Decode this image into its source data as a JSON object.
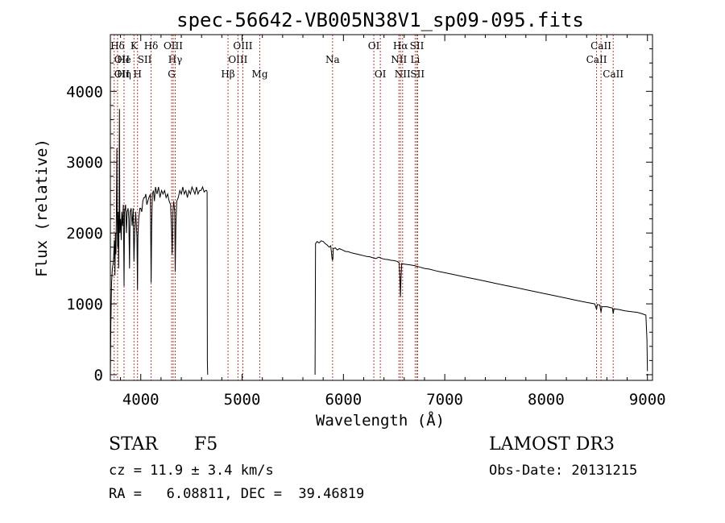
{
  "chart_data": {
    "type": "line",
    "title": "spec-56642-VB005N38V1_sp09-095.fits",
    "xlabel": "Wavelength (Å)",
    "ylabel": "Flux (relative)",
    "xlim": [
      3700,
      9050
    ],
    "ylim": [
      -80,
      4800
    ],
    "x_ticks": [
      4000,
      5000,
      6000,
      7000,
      8000,
      9000
    ],
    "y_ticks": [
      0,
      1000,
      2000,
      3000,
      4000
    ],
    "series": [
      {
        "name": "spectrum",
        "segments": [
          [
            [
              3700,
              0
            ],
            [
              3705,
              700
            ],
            [
              3712,
              1300
            ],
            [
              3720,
              1500
            ],
            [
              3730,
              1600
            ],
            [
              3740,
              1900
            ],
            [
              3745,
              1400
            ],
            [
              3750,
              2000
            ],
            [
              3755,
              1700
            ],
            [
              3760,
              2300
            ],
            [
              3764,
              3200
            ],
            [
              3768,
              2100
            ],
            [
              3772,
              1800
            ],
            [
              3777,
              2300
            ],
            [
              3782,
              1500
            ],
            [
              3786,
              2200
            ],
            [
              3790,
              3750
            ],
            [
              3794,
              2000
            ],
            [
              3800,
              2200
            ],
            [
              3807,
              1900
            ],
            [
              3812,
              2300
            ],
            [
              3820,
              2100
            ],
            [
              3828,
              2400
            ],
            [
              3835,
              1250
            ],
            [
              3840,
              2300
            ],
            [
              3850,
              2400
            ],
            [
              3858,
              2000
            ],
            [
              3865,
              2300
            ],
            [
              3875,
              2350
            ],
            [
              3882,
              2200
            ],
            [
              3889,
              1500
            ],
            [
              3895,
              2300
            ],
            [
              3905,
              2350
            ],
            [
              3915,
              2100
            ],
            [
              3925,
              2350
            ],
            [
              3933,
              1600
            ],
            [
              3940,
              2000
            ],
            [
              3950,
              2300
            ],
            [
              3962,
              1950
            ],
            [
              3968,
              1200
            ],
            [
              3972,
              1950
            ],
            [
              3980,
              2200
            ],
            [
              3992,
              2350
            ],
            [
              4000,
              2350
            ],
            [
              4010,
              2300
            ],
            [
              4020,
              2450
            ],
            [
              4030,
              2500
            ],
            [
              4040,
              2500
            ],
            [
              4050,
              2550
            ],
            [
              4060,
              2400
            ],
            [
              4070,
              2450
            ],
            [
              4080,
              2500
            ],
            [
              4095,
              2550
            ],
            [
              4102,
              1300
            ],
            [
              4108,
              2100
            ],
            [
              4115,
              2550
            ],
            [
              4125,
              2600
            ],
            [
              4135,
              2450
            ],
            [
              4145,
              2650
            ],
            [
              4160,
              2550
            ],
            [
              4175,
              2650
            ],
            [
              4190,
              2500
            ],
            [
              4205,
              2600
            ],
            [
              4220,
              2550
            ],
            [
              4235,
              2600
            ],
            [
              4250,
              2500
            ],
            [
              4265,
              2550
            ],
            [
              4280,
              2450
            ],
            [
              4295,
              2400
            ],
            [
              4305,
              2000
            ],
            [
              4310,
              1700
            ],
            [
              4318,
              2300
            ],
            [
              4325,
              2450
            ],
            [
              4335,
              2300
            ],
            [
              4340,
              1450
            ],
            [
              4346,
              2100
            ],
            [
              4355,
              2450
            ],
            [
              4370,
              2500
            ],
            [
              4385,
              2600
            ],
            [
              4400,
              2550
            ],
            [
              4415,
              2650
            ],
            [
              4430,
              2550
            ],
            [
              4445,
              2600
            ],
            [
              4460,
              2500
            ],
            [
              4475,
              2600
            ],
            [
              4490,
              2550
            ],
            [
              4505,
              2650
            ],
            [
              4520,
              2600
            ],
            [
              4535,
              2550
            ],
            [
              4550,
              2650
            ],
            [
              4565,
              2550
            ],
            [
              4580,
              2600
            ],
            [
              4595,
              2600
            ],
            [
              4610,
              2650
            ],
            [
              4625,
              2580
            ],
            [
              4640,
              2600
            ],
            [
              4650,
              2600
            ],
            [
              4655,
              2580
            ],
            [
              4657,
              200
            ],
            [
              4660,
              0
            ]
          ],
          [
            [
              5720,
              0
            ],
            [
              5725,
              1850
            ],
            [
              5740,
              1880
            ],
            [
              5760,
              1860
            ],
            [
              5780,
              1890
            ],
            [
              5800,
              1880
            ],
            [
              5820,
              1850
            ],
            [
              5840,
              1830
            ],
            [
              5860,
              1800
            ],
            [
              5875,
              1820
            ],
            [
              5888,
              1640
            ],
            [
              5892,
              1620
            ],
            [
              5896,
              1630
            ],
            [
              5900,
              1780
            ],
            [
              5920,
              1790
            ],
            [
              5940,
              1760
            ],
            [
              5960,
              1780
            ],
            [
              5990,
              1760
            ],
            [
              6020,
              1740
            ],
            [
              6050,
              1735
            ],
            [
              6080,
              1720
            ],
            [
              6110,
              1710
            ],
            [
              6140,
              1700
            ],
            [
              6170,
              1690
            ],
            [
              6200,
              1680
            ],
            [
              6230,
              1670
            ],
            [
              6260,
              1665
            ],
            [
              6290,
              1650
            ],
            [
              6320,
              1640
            ],
            [
              6350,
              1660
            ],
            [
              6380,
              1640
            ],
            [
              6410,
              1630
            ],
            [
              6440,
              1625
            ],
            [
              6470,
              1615
            ],
            [
              6500,
              1610
            ],
            [
              6530,
              1600
            ],
            [
              6550,
              1580
            ],
            [
              6558,
              1350
            ],
            [
              6563,
              1100
            ],
            [
              6568,
              1350
            ],
            [
              6575,
              1570
            ],
            [
              6600,
              1560
            ],
            [
              6630,
              1555
            ],
            [
              6660,
              1550
            ],
            [
              6700,
              1540
            ],
            [
              6750,
              1520
            ],
            [
              6800,
              1500
            ],
            [
              6850,
              1490
            ],
            [
              6900,
              1470
            ],
            [
              6950,
              1455
            ],
            [
              7000,
              1440
            ],
            [
              7100,
              1410
            ],
            [
              7200,
              1380
            ],
            [
              7300,
              1350
            ],
            [
              7400,
              1320
            ],
            [
              7500,
              1290
            ],
            [
              7600,
              1260
            ],
            [
              7700,
              1230
            ],
            [
              7800,
              1200
            ],
            [
              7900,
              1170
            ],
            [
              8000,
              1140
            ],
            [
              8100,
              1110
            ],
            [
              8200,
              1080
            ],
            [
              8300,
              1050
            ],
            [
              8400,
              1020
            ],
            [
              8480,
              1000
            ],
            [
              8498,
              920
            ],
            [
              8505,
              990
            ],
            [
              8530,
              985
            ],
            [
              8542,
              880
            ],
            [
              8550,
              960
            ],
            [
              8600,
              960
            ],
            [
              8655,
              940
            ],
            [
              8662,
              860
            ],
            [
              8670,
              930
            ],
            [
              8720,
              920
            ],
            [
              8780,
              900
            ],
            [
              8840,
              890
            ],
            [
              8900,
              880
            ],
            [
              8950,
              860
            ],
            [
              8985,
              840
            ],
            [
              8995,
              500
            ],
            [
              9000,
              50
            ]
          ]
        ]
      }
    ],
    "lines": [
      {
        "label": "Hδ",
        "x": 3771,
        "row": 1,
        "anchor": "middle"
      },
      {
        "label": "OII",
        "x": 3738,
        "row": 2,
        "anchor": "start"
      },
      {
        "label": "OII",
        "x": 3738,
        "row": 3,
        "anchor": "start"
      },
      {
        "label": "Hη",
        "x": 3835,
        "row": 3,
        "anchor": "middle"
      },
      {
        "label": "He",
        "x": 3835,
        "row": 2,
        "anchor": "middle"
      },
      {
        "label": "K",
        "x": 3933,
        "row": 1,
        "anchor": "middle"
      },
      {
        "label": "SII",
        "x": 3968,
        "row": 2,
        "anchor": "start"
      },
      {
        "label": "H",
        "x": 3968,
        "row": 3,
        "anchor": "middle"
      },
      {
        "label": "Hδ",
        "x": 4102,
        "row": 1,
        "anchor": "middle"
      },
      {
        "label": "OIII",
        "x": 4320,
        "row": 1,
        "anchor": "middle"
      },
      {
        "label": "Hγ",
        "x": 4340,
        "row": 2,
        "anchor": "middle"
      },
      {
        "label": "G",
        "x": 4305,
        "row": 3,
        "anchor": "middle"
      },
      {
        "label": "OIII",
        "x": 5007,
        "row": 1,
        "anchor": "middle"
      },
      {
        "label": "OIII",
        "x": 4959,
        "row": 2,
        "anchor": "middle"
      },
      {
        "label": "Hβ",
        "x": 4861,
        "row": 3,
        "anchor": "middle"
      },
      {
        "label": "Mg",
        "x": 5175,
        "row": 3,
        "anchor": "middle"
      },
      {
        "label": "Na",
        "x": 5893,
        "row": 2,
        "anchor": "middle"
      },
      {
        "label": "OI",
        "x": 6300,
        "row": 1,
        "anchor": "middle"
      },
      {
        "label": "OI",
        "x": 6364,
        "row": 3,
        "anchor": "middle"
      },
      {
        "label": "Hα",
        "x": 6563,
        "row": 1,
        "anchor": "middle"
      },
      {
        "label": "SII",
        "x": 6725,
        "row": 1,
        "anchor": "middle"
      },
      {
        "label": "NII",
        "x": 6548,
        "row": 2,
        "anchor": "middle"
      },
      {
        "label": "Li",
        "x": 6708,
        "row": 2,
        "anchor": "middle"
      },
      {
        "label": "NII",
        "x": 6584,
        "row": 3,
        "anchor": "middle"
      },
      {
        "label": "SII",
        "x": 6731,
        "row": 3,
        "anchor": "middle"
      },
      {
        "label": "CaII",
        "x": 8542,
        "row": 1,
        "anchor": "middle"
      },
      {
        "label": "CaII",
        "x": 8498,
        "row": 2,
        "anchor": "middle"
      },
      {
        "label": "CaII",
        "x": 8662,
        "row": 3,
        "anchor": "middle"
      }
    ]
  },
  "info": {
    "class_label": "STAR",
    "subclass": "F5",
    "survey": "LAMOST DR3",
    "cz": "cz = 11.9 ± 3.4 km/s",
    "obs_date": "Obs-Date: 20131215",
    "coords": "RA =   6.08811, DEC =  39.46819"
  },
  "colors": {
    "line_marker": "#c0392b",
    "spectrum": "#000000"
  }
}
